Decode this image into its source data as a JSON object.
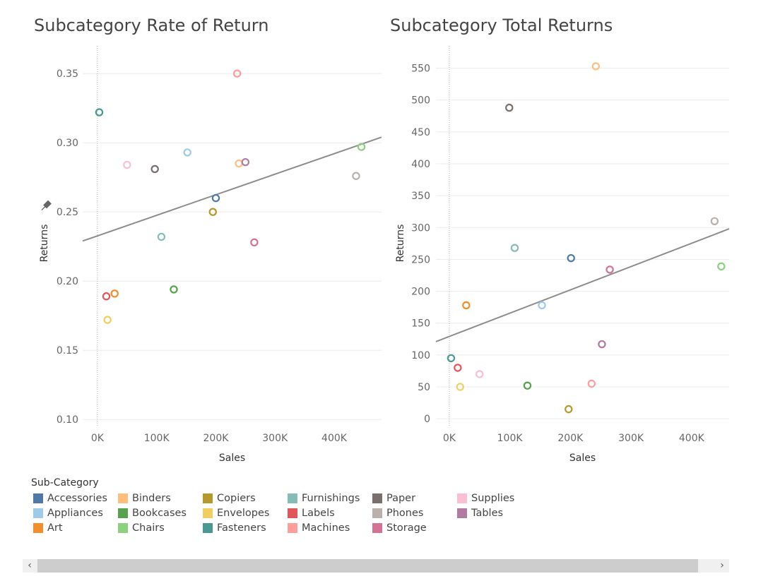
{
  "categories_legend": {
    "title": "Sub-Category",
    "items": [
      {
        "name": "Accessories",
        "color": "#4e79a7"
      },
      {
        "name": "Appliances",
        "color": "#a0cbe8"
      },
      {
        "name": "Art",
        "color": "#f28e2b"
      },
      {
        "name": "Binders",
        "color": "#ffbe7d"
      },
      {
        "name": "Bookcases",
        "color": "#59a14f"
      },
      {
        "name": "Chairs",
        "color": "#8cd17d"
      },
      {
        "name": "Copiers",
        "color": "#b6992d"
      },
      {
        "name": "Envelopes",
        "color": "#f1ce63"
      },
      {
        "name": "Fasteners",
        "color": "#499894"
      },
      {
        "name": "Furnishings",
        "color": "#86bcb6"
      },
      {
        "name": "Labels",
        "color": "#e15759"
      },
      {
        "name": "Machines",
        "color": "#ff9d9a"
      },
      {
        "name": "Paper",
        "color": "#79706e"
      },
      {
        "name": "Phones",
        "color": "#bab0ac"
      },
      {
        "name": "Storage",
        "color": "#d37295"
      },
      {
        "name": "Supplies",
        "color": "#fabfd2"
      },
      {
        "name": "Tables",
        "color": "#b07aa1"
      }
    ]
  },
  "chart_data": [
    {
      "type": "scatter",
      "title": "Subcategory Rate of Return",
      "xlabel": "Sales",
      "ylabel": "Returns",
      "xlim": [
        -25000,
        480000
      ],
      "ylim": [
        0.095,
        0.37
      ],
      "xticks": [
        0,
        100000,
        200000,
        300000,
        400000
      ],
      "xtick_labels": [
        "0K",
        "100K",
        "200K",
        "300K",
        "400K"
      ],
      "yticks": [
        0.1,
        0.15,
        0.2,
        0.25,
        0.3,
        0.35
      ],
      "ytick_labels": [
        "0.10",
        "0.15",
        "0.20",
        "0.25",
        "0.30",
        "0.35"
      ],
      "trend_line": {
        "x": [
          -25000,
          480000
        ],
        "y": [
          0.229,
          0.304
        ]
      },
      "points": [
        {
          "category": "Accessories",
          "x": 200000,
          "y": 0.26
        },
        {
          "category": "Appliances",
          "x": 152000,
          "y": 0.293
        },
        {
          "category": "Art",
          "x": 29000,
          "y": 0.191
        },
        {
          "category": "Binders",
          "x": 239000,
          "y": 0.285
        },
        {
          "category": "Bookcases",
          "x": 129000,
          "y": 0.194
        },
        {
          "category": "Chairs",
          "x": 446000,
          "y": 0.297
        },
        {
          "category": "Copiers",
          "x": 195000,
          "y": 0.25
        },
        {
          "category": "Envelopes",
          "x": 17000,
          "y": 0.172
        },
        {
          "category": "Fasteners",
          "x": 3000,
          "y": 0.322
        },
        {
          "category": "Furnishings",
          "x": 108000,
          "y": 0.232
        },
        {
          "category": "Labels",
          "x": 15000,
          "y": 0.189
        },
        {
          "category": "Machines",
          "x": 236000,
          "y": 0.35
        },
        {
          "category": "Paper",
          "x": 97000,
          "y": 0.281
        },
        {
          "category": "Phones",
          "x": 437000,
          "y": 0.276
        },
        {
          "category": "Storage",
          "x": 265000,
          "y": 0.228
        },
        {
          "category": "Supplies",
          "x": 50000,
          "y": 0.284
        },
        {
          "category": "Tables",
          "x": 250000,
          "y": 0.286
        }
      ]
    },
    {
      "type": "scatter",
      "title": "Subcategory Total Returns",
      "xlabel": "Sales",
      "ylabel": "Returns",
      "xlim": [
        -22000,
        462000
      ],
      "ylim": [
        -12,
        585
      ],
      "xticks": [
        0,
        100000,
        200000,
        300000,
        400000
      ],
      "xtick_labels": [
        "0K",
        "100K",
        "200K",
        "300K",
        "400K"
      ],
      "yticks": [
        0,
        50,
        100,
        150,
        200,
        250,
        300,
        350,
        400,
        450,
        500,
        550
      ],
      "ytick_labels": [
        "0",
        "50",
        "100",
        "150",
        "200",
        "250",
        "300",
        "350",
        "400",
        "450",
        "500",
        "550"
      ],
      "trend_line": {
        "x": [
          -22000,
          462000
        ],
        "y": [
          121,
          298
        ]
      },
      "points": [
        {
          "category": "Accessories",
          "x": 201000,
          "y": 252
        },
        {
          "category": "Appliances",
          "x": 153000,
          "y": 178
        },
        {
          "category": "Art",
          "x": 28000,
          "y": 178
        },
        {
          "category": "Binders",
          "x": 242000,
          "y": 553
        },
        {
          "category": "Bookcases",
          "x": 129000,
          "y": 52
        },
        {
          "category": "Chairs",
          "x": 449000,
          "y": 239
        },
        {
          "category": "Copiers",
          "x": 197000,
          "y": 15
        },
        {
          "category": "Envelopes",
          "x": 18000,
          "y": 50
        },
        {
          "category": "Fasteners",
          "x": 3000,
          "y": 95
        },
        {
          "category": "Furnishings",
          "x": 108000,
          "y": 268
        },
        {
          "category": "Labels",
          "x": 14000,
          "y": 80
        },
        {
          "category": "Machines",
          "x": 235000,
          "y": 55
        },
        {
          "category": "Paper",
          "x": 99000,
          "y": 488
        },
        {
          "category": "Phones",
          "x": 438000,
          "y": 310
        },
        {
          "category": "Storage",
          "x": 265000,
          "y": 234
        },
        {
          "category": "Supplies",
          "x": 50000,
          "y": 70
        },
        {
          "category": "Tables",
          "x": 252000,
          "y": 117
        }
      ]
    }
  ],
  "scrollbar": {
    "left_arrow": "‹",
    "right_arrow": "›"
  }
}
